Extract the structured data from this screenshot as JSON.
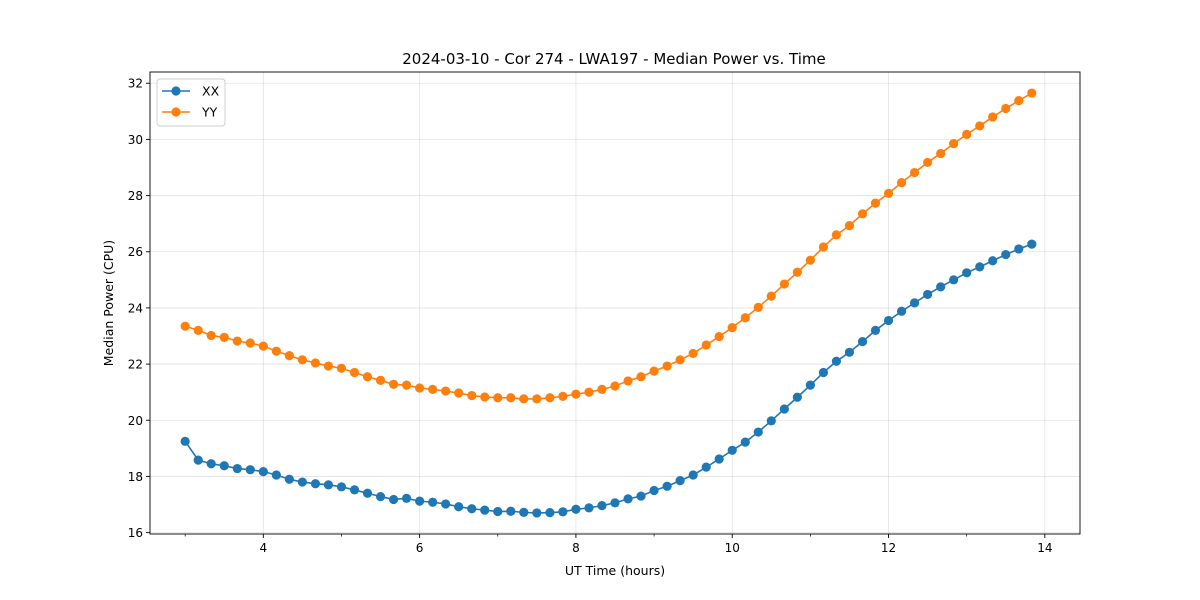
{
  "chart_data": {
    "type": "line",
    "title": "2024-03-10 - Cor 274 - LWA197 - Median Power vs. Time",
    "xlabel": "UT Time (hours)",
    "ylabel": "Median Power (CPU)",
    "xlim": [
      2.55,
      14.45
    ],
    "ylim": [
      15.95,
      32.4
    ],
    "xticks": [
      "4",
      "6",
      "8",
      "10",
      "12",
      "14"
    ],
    "yticks": [
      "16",
      "18",
      "20",
      "22",
      "24",
      "26",
      "28",
      "30",
      "32"
    ],
    "grid": true,
    "legend_position": "top-left",
    "x": [
      3.0,
      3.167,
      3.333,
      3.5,
      3.667,
      3.833,
      4.0,
      4.167,
      4.333,
      4.5,
      4.667,
      4.833,
      5.0,
      5.167,
      5.333,
      5.5,
      5.667,
      5.833,
      6.0,
      6.167,
      6.333,
      6.5,
      6.667,
      6.833,
      7.0,
      7.167,
      7.333,
      7.5,
      7.667,
      7.833,
      8.0,
      8.167,
      8.333,
      8.5,
      8.667,
      8.833,
      9.0,
      9.167,
      9.333,
      9.5,
      9.667,
      9.833,
      10.0,
      10.167,
      10.333,
      10.5,
      10.667,
      10.833,
      11.0,
      11.167,
      11.333,
      11.5,
      11.667,
      11.833,
      12.0,
      12.167,
      12.333,
      12.5,
      12.667,
      12.833,
      13.0,
      13.167,
      13.333,
      13.5,
      13.667,
      13.833
    ],
    "series": [
      {
        "name": "XX",
        "color": "#1f77b4",
        "values": [
          19.25,
          18.58,
          18.45,
          18.38,
          18.28,
          18.24,
          18.17,
          18.05,
          17.9,
          17.8,
          17.74,
          17.7,
          17.63,
          17.52,
          17.4,
          17.28,
          17.18,
          17.22,
          17.12,
          17.08,
          17.02,
          16.92,
          16.85,
          16.8,
          16.75,
          16.76,
          16.72,
          16.7,
          16.71,
          16.74,
          16.83,
          16.88,
          16.96,
          17.06,
          17.2,
          17.3,
          17.5,
          17.65,
          17.85,
          18.05,
          18.33,
          18.62,
          18.93,
          19.22,
          19.58,
          19.98,
          20.4,
          20.82,
          21.25,
          21.7,
          22.1,
          22.42,
          22.8,
          23.2,
          23.55,
          23.88,
          24.18,
          24.48,
          24.75,
          25.0,
          25.25,
          25.46,
          25.68,
          25.9,
          26.1,
          26.27
        ]
      },
      {
        "name": "YY",
        "color": "#ff7f0e",
        "values": [
          23.35,
          23.2,
          23.02,
          22.95,
          22.82,
          22.75,
          22.64,
          22.46,
          22.3,
          22.15,
          22.04,
          21.93,
          21.85,
          21.7,
          21.55,
          21.42,
          21.28,
          21.25,
          21.15,
          21.1,
          21.04,
          20.97,
          20.88,
          20.83,
          20.8,
          20.8,
          20.76,
          20.76,
          20.8,
          20.85,
          20.93,
          21.0,
          21.1,
          21.22,
          21.4,
          21.55,
          21.75,
          21.93,
          22.15,
          22.38,
          22.68,
          22.98,
          23.3,
          23.65,
          24.02,
          24.42,
          24.85,
          25.27,
          25.7,
          26.17,
          26.6,
          26.93,
          27.35,
          27.73,
          28.08,
          28.46,
          28.82,
          29.18,
          29.5,
          29.85,
          30.18,
          30.48,
          30.8,
          31.1,
          31.38,
          31.65
        ]
      }
    ]
  }
}
